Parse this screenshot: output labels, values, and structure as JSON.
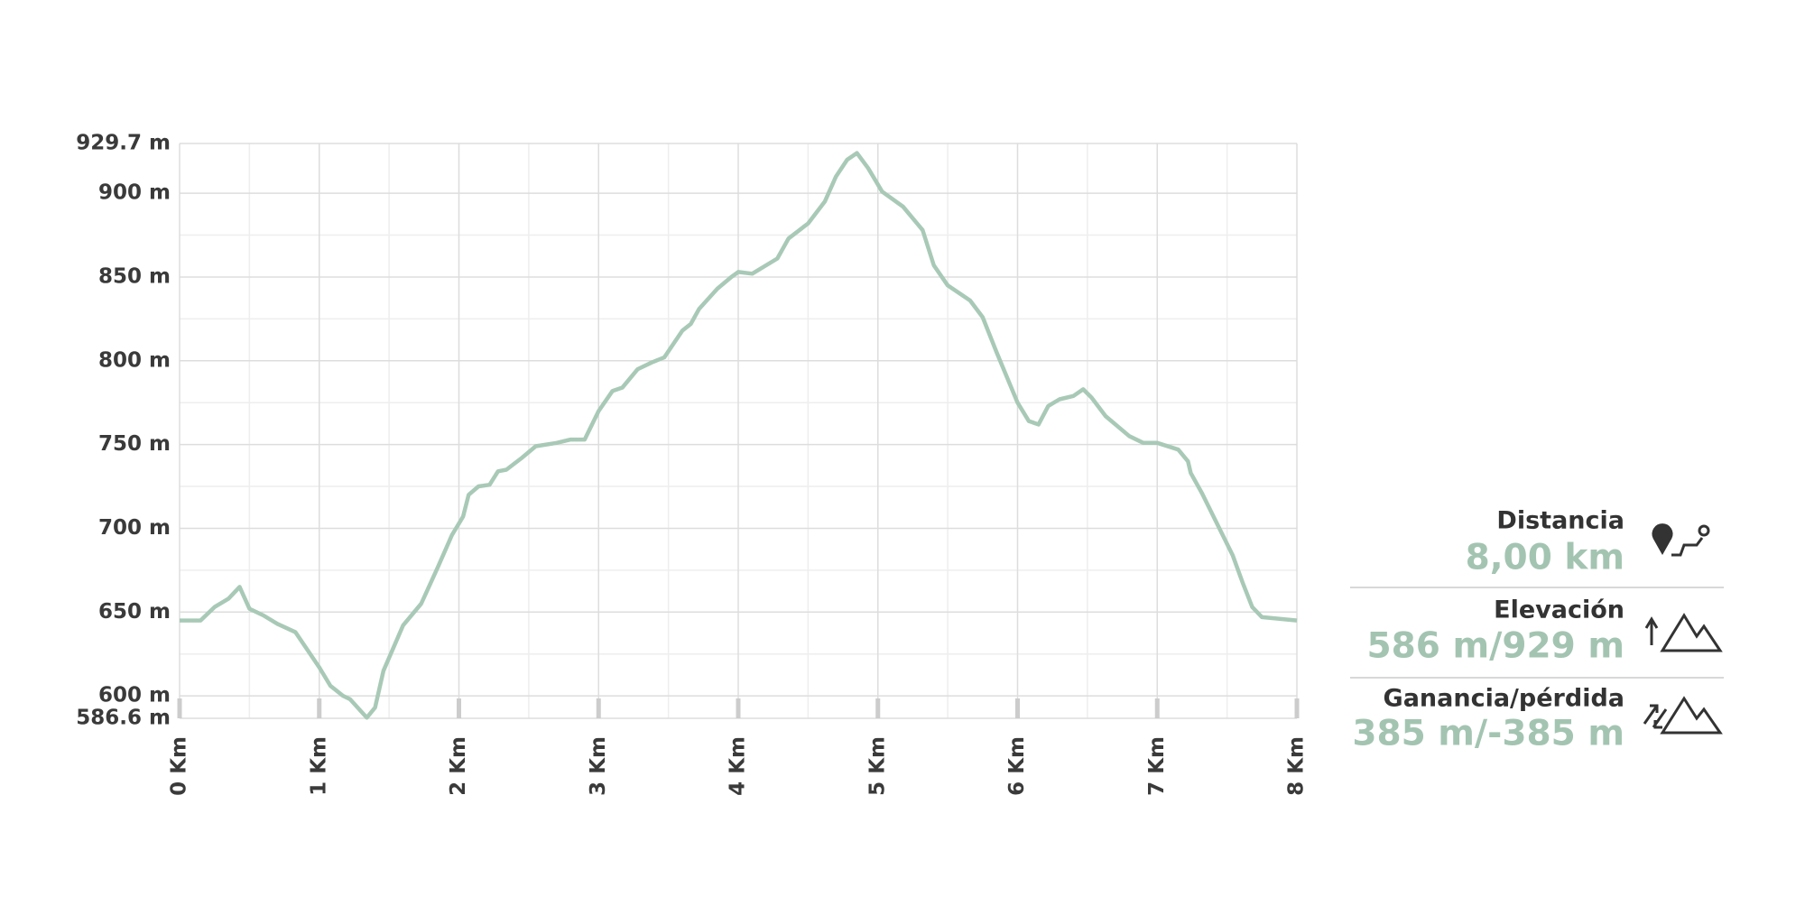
{
  "chart_data": {
    "type": "line",
    "color": "#a8c9b6",
    "grid": true,
    "xlim": [
      0,
      8
    ],
    "ylim": [
      586.6,
      929.7
    ],
    "xticks": [
      {
        "value": 0,
        "label": "0 Km"
      },
      {
        "value": 1,
        "label": "1 Km"
      },
      {
        "value": 2,
        "label": "2 Km"
      },
      {
        "value": 3,
        "label": "3 Km"
      },
      {
        "value": 4,
        "label": "4 Km"
      },
      {
        "value": 5,
        "label": "5 Km"
      },
      {
        "value": 6,
        "label": "6 Km"
      },
      {
        "value": 7,
        "label": "7 Km"
      },
      {
        "value": 8,
        "label": "8 Km"
      }
    ],
    "xminor": [
      0.5,
      1.5,
      2.5,
      3.5,
      4.5,
      5.5,
      6.5,
      7.5
    ],
    "yticks": [
      {
        "value": 929.7,
        "label": "929.7 m"
      },
      {
        "value": 900,
        "label": "900 m"
      },
      {
        "value": 850,
        "label": "850 m"
      },
      {
        "value": 800,
        "label": "800 m"
      },
      {
        "value": 750,
        "label": "750 m"
      },
      {
        "value": 700,
        "label": "700 m"
      },
      {
        "value": 650,
        "label": "650 m"
      },
      {
        "value": 600,
        "label": "600 m"
      },
      {
        "value": 586.6,
        "label": "586.6 m"
      }
    ],
    "yminor": [
      875,
      825,
      775,
      725,
      675,
      625
    ],
    "x": [
      0,
      0.15,
      0.25,
      0.35,
      0.43,
      0.5,
      0.6,
      0.7,
      0.83,
      1.0,
      1.08,
      1.17,
      1.22,
      1.34,
      1.4,
      1.46,
      1.6,
      1.73,
      1.85,
      1.95,
      2.03,
      2.07,
      2.14,
      2.22,
      2.28,
      2.34,
      2.45,
      2.55,
      2.7,
      2.8,
      2.9,
      3.0,
      3.1,
      3.17,
      3.28,
      3.38,
      3.47,
      3.6,
      3.66,
      3.72,
      3.85,
      3.95,
      4.0,
      4.1,
      4.28,
      4.36,
      4.5,
      4.62,
      4.7,
      4.78,
      4.85,
      4.93,
      5.03,
      5.18,
      5.32,
      5.4,
      5.5,
      5.66,
      5.75,
      5.85,
      6.0,
      6.08,
      6.15,
      6.22,
      6.3,
      6.4,
      6.47,
      6.53,
      6.63,
      6.8,
      6.9,
      7.0,
      7.15,
      7.22,
      7.24,
      7.32,
      7.54,
      7.61,
      7.68,
      7.75,
      8.0
    ],
    "values": [
      645,
      645,
      653,
      658,
      665,
      652,
      648,
      643,
      638,
      617,
      606,
      600,
      598,
      587,
      593,
      615,
      642,
      655,
      677,
      696,
      707,
      720,
      725,
      726,
      734,
      735,
      742,
      749,
      751,
      753,
      753,
      770,
      782,
      784,
      795,
      799,
      802,
      818,
      822,
      831,
      843,
      850,
      853,
      852,
      861,
      873,
      882,
      895,
      910,
      920,
      924,
      915,
      901,
      892,
      878,
      857,
      845,
      836,
      826,
      805,
      775,
      764,
      762,
      773,
      777,
      779,
      783,
      778,
      767,
      755,
      751,
      751,
      747,
      740,
      733,
      721,
      684,
      668,
      653,
      647,
      645
    ]
  },
  "stats": [
    {
      "label": "Distancia",
      "value": "8,00 km"
    },
    {
      "label": "Elevación",
      "value": "586 m/929 m"
    },
    {
      "label": "Ganancia/pérdida",
      "value": "385 m/-385 m"
    }
  ]
}
